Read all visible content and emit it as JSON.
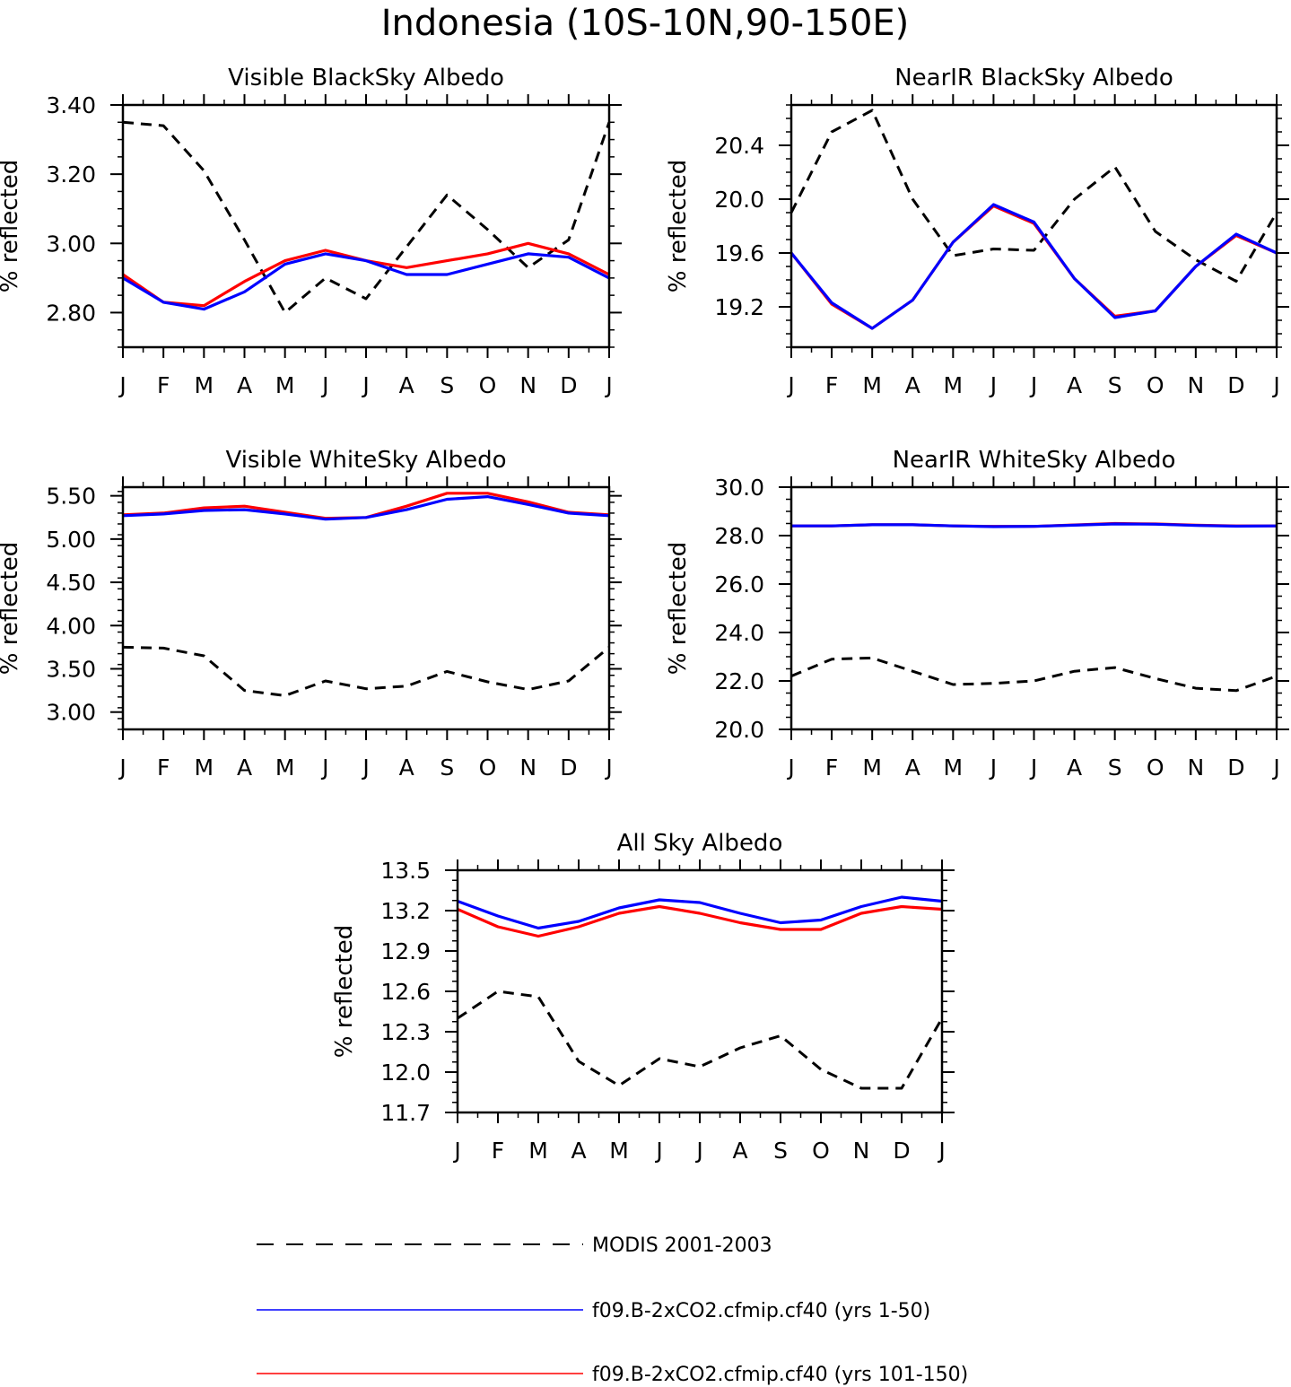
{
  "title": "Indonesia (10S-10N,90-150E)",
  "legend": [
    {
      "label": "MODIS 2001-2003",
      "color": "#000000",
      "dash": true
    },
    {
      "label": "f09.B-2xCO2.cfmip.cf40 (yrs 1-50)",
      "color": "#0000ff",
      "dash": false
    },
    {
      "label": "f09.B-2xCO2.cfmip.cf40 (yrs 101-150)",
      "color": "#ff0000",
      "dash": false
    }
  ],
  "chart_data": [
    {
      "type": "line",
      "title": "Visible BlackSky Albedo",
      "ylabel": "% reflected",
      "categories": [
        "J",
        "F",
        "M",
        "A",
        "M",
        "J",
        "J",
        "A",
        "S",
        "O",
        "N",
        "D",
        "J"
      ],
      "ylim": [
        2.7,
        3.4
      ],
      "yticks": [
        "2.80",
        "3.00",
        "3.20",
        "3.40"
      ],
      "series": [
        {
          "name": "MODIS 2001-2003",
          "color": "#000000",
          "dash": true,
          "values": [
            3.35,
            3.34,
            3.21,
            3.01,
            2.8,
            2.9,
            2.84,
            2.99,
            3.14,
            3.04,
            2.93,
            3.01,
            3.35
          ]
        },
        {
          "name": "f09.B-2xCO2.cfmip.cf40 (yrs 101-150)",
          "color": "#ff0000",
          "dash": false,
          "values": [
            2.91,
            2.83,
            2.82,
            2.89,
            2.95,
            2.98,
            2.95,
            2.93,
            2.95,
            2.97,
            3.0,
            2.97,
            2.91
          ]
        },
        {
          "name": "f09.B-2xCO2.cfmip.cf40 (yrs 1-50)",
          "color": "#0000ff",
          "dash": false,
          "values": [
            2.9,
            2.83,
            2.81,
            2.86,
            2.94,
            2.97,
            2.95,
            2.91,
            2.91,
            2.94,
            2.97,
            2.96,
            2.9
          ]
        }
      ]
    },
    {
      "type": "line",
      "title": "NearIR BlackSky Albedo",
      "ylabel": "% reflected",
      "categories": [
        "J",
        "F",
        "M",
        "A",
        "M",
        "J",
        "J",
        "A",
        "S",
        "O",
        "N",
        "D",
        "J"
      ],
      "ylim": [
        18.9,
        20.7
      ],
      "yticks": [
        "19.2",
        "19.6",
        "20.0",
        "20.4"
      ],
      "series": [
        {
          "name": "MODIS 2001-2003",
          "color": "#000000",
          "dash": true,
          "values": [
            19.9,
            20.5,
            20.66,
            20.0,
            19.58,
            19.63,
            19.62,
            20.0,
            20.24,
            19.76,
            19.55,
            19.39,
            19.9
          ]
        },
        {
          "name": "f09.B-2xCO2.cfmip.cf40 (yrs 101-150)",
          "color": "#ff0000",
          "dash": false,
          "values": [
            19.6,
            19.22,
            19.04,
            19.25,
            19.68,
            19.95,
            19.82,
            19.41,
            19.13,
            19.17,
            19.5,
            19.73,
            19.6
          ]
        },
        {
          "name": "f09.B-2xCO2.cfmip.cf40 (yrs 1-50)",
          "color": "#0000ff",
          "dash": false,
          "values": [
            19.6,
            19.23,
            19.04,
            19.25,
            19.68,
            19.96,
            19.83,
            19.41,
            19.12,
            19.17,
            19.5,
            19.74,
            19.6
          ]
        }
      ]
    },
    {
      "type": "line",
      "title": "Visible WhiteSky Albedo",
      "ylabel": "% reflected",
      "categories": [
        "J",
        "F",
        "M",
        "A",
        "M",
        "J",
        "J",
        "A",
        "S",
        "O",
        "N",
        "D",
        "J"
      ],
      "ylim": [
        2.8,
        5.6
      ],
      "yticks": [
        "3.00",
        "3.50",
        "4.00",
        "4.50",
        "5.00",
        "5.50"
      ],
      "series": [
        {
          "name": "MODIS 2001-2003",
          "color": "#000000",
          "dash": true,
          "values": [
            3.75,
            3.74,
            3.65,
            3.25,
            3.19,
            3.36,
            3.27,
            3.3,
            3.47,
            3.35,
            3.26,
            3.36,
            3.75
          ]
        },
        {
          "name": "f09.B-2xCO2.cfmip.cf40 (yrs 101-150)",
          "color": "#ff0000",
          "dash": false,
          "values": [
            5.28,
            5.3,
            5.36,
            5.38,
            5.31,
            5.24,
            5.25,
            5.38,
            5.53,
            5.53,
            5.43,
            5.31,
            5.28
          ]
        },
        {
          "name": "f09.B-2xCO2.cfmip.cf40 (yrs 1-50)",
          "color": "#0000ff",
          "dash": false,
          "values": [
            5.27,
            5.29,
            5.33,
            5.34,
            5.29,
            5.23,
            5.25,
            5.34,
            5.46,
            5.49,
            5.4,
            5.3,
            5.27
          ]
        }
      ]
    },
    {
      "type": "line",
      "title": "NearIR WhiteSky Albedo",
      "ylabel": "% reflected",
      "categories": [
        "J",
        "F",
        "M",
        "A",
        "M",
        "J",
        "J",
        "A",
        "S",
        "O",
        "N",
        "D",
        "J"
      ],
      "ylim": [
        20.0,
        30.0
      ],
      "yticks": [
        "20.0",
        "22.0",
        "24.0",
        "26.0",
        "28.0",
        "30.0"
      ],
      "series": [
        {
          "name": "MODIS 2001-2003",
          "color": "#000000",
          "dash": true,
          "values": [
            22.2,
            22.9,
            22.95,
            22.4,
            21.85,
            21.9,
            22.0,
            22.4,
            22.55,
            22.1,
            21.7,
            21.6,
            22.2
          ]
        },
        {
          "name": "f09.B-2xCO2.cfmip.cf40 (yrs 101-150)",
          "color": "#ff0000",
          "dash": false,
          "values": [
            28.4,
            28.4,
            28.45,
            28.45,
            28.4,
            28.38,
            28.38,
            28.44,
            28.5,
            28.48,
            28.43,
            28.4,
            28.4
          ]
        },
        {
          "name": "f09.B-2xCO2.cfmip.cf40 (yrs 1-50)",
          "color": "#0000ff",
          "dash": false,
          "values": [
            28.4,
            28.4,
            28.45,
            28.45,
            28.4,
            28.37,
            28.38,
            28.43,
            28.48,
            28.47,
            28.42,
            28.39,
            28.4
          ]
        }
      ]
    },
    {
      "type": "line",
      "title": "All Sky Albedo",
      "ylabel": "% reflected",
      "categories": [
        "J",
        "F",
        "M",
        "A",
        "M",
        "J",
        "J",
        "A",
        "S",
        "O",
        "N",
        "D",
        "J"
      ],
      "ylim": [
        11.7,
        13.5
      ],
      "yticks": [
        "11.7",
        "12.0",
        "12.3",
        "12.6",
        "12.9",
        "13.2",
        "13.5"
      ],
      "series": [
        {
          "name": "MODIS 2001-2003",
          "color": "#000000",
          "dash": true,
          "values": [
            12.4,
            12.6,
            12.56,
            12.08,
            11.9,
            12.1,
            12.04,
            12.18,
            12.27,
            12.02,
            11.88,
            11.88,
            12.4
          ]
        },
        {
          "name": "f09.B-2xCO2.cfmip.cf40 (yrs 101-150)",
          "color": "#ff0000",
          "dash": false,
          "values": [
            13.21,
            13.08,
            13.01,
            13.08,
            13.18,
            13.23,
            13.18,
            13.11,
            13.06,
            13.06,
            13.18,
            13.23,
            13.21
          ]
        },
        {
          "name": "f09.B-2xCO2.cfmip.cf40 (yrs 1-50)",
          "color": "#0000ff",
          "dash": false,
          "values": [
            13.27,
            13.16,
            13.07,
            13.12,
            13.22,
            13.28,
            13.26,
            13.18,
            13.11,
            13.13,
            13.23,
            13.3,
            13.27
          ]
        }
      ]
    }
  ]
}
